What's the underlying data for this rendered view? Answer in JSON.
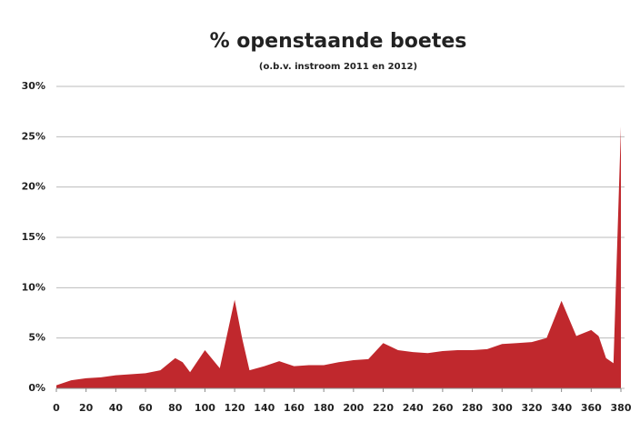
{
  "chart_data": {
    "type": "area",
    "title": "% openstaande boetes",
    "subtitle": "(o.b.v. instroom 2011 en 2012)",
    "x": [
      0,
      10,
      20,
      30,
      40,
      50,
      60,
      70,
      80,
      85,
      90,
      100,
      110,
      120,
      125,
      130,
      140,
      150,
      160,
      170,
      180,
      190,
      200,
      210,
      220,
      230,
      240,
      250,
      260,
      270,
      280,
      290,
      300,
      310,
      320,
      330,
      340,
      350,
      360,
      365,
      370,
      375,
      380
    ],
    "values": [
      0.3,
      0.8,
      1.0,
      1.1,
      1.3,
      1.4,
      1.5,
      1.8,
      3.0,
      2.6,
      1.6,
      3.8,
      2.0,
      8.8,
      5.0,
      1.8,
      2.2,
      2.7,
      2.2,
      2.3,
      2.3,
      2.6,
      2.8,
      2.9,
      4.5,
      3.8,
      3.6,
      3.5,
      3.7,
      3.8,
      3.8,
      3.9,
      4.4,
      4.5,
      4.6,
      5.0,
      8.7,
      5.2,
      5.8,
      5.2,
      3.0,
      2.5,
      26
    ],
    "color": "#c0282d",
    "xlim": [
      0,
      380
    ],
    "xticks": [
      0,
      20,
      40,
      60,
      80,
      100,
      120,
      140,
      160,
      180,
      200,
      220,
      240,
      260,
      280,
      300,
      320,
      340,
      360,
      380
    ],
    "ylim": [
      0,
      30
    ],
    "yticks": [
      {
        "value": 0,
        "label": "0%"
      },
      {
        "value": 5,
        "label": "5%"
      },
      {
        "value": 10,
        "label": "10%"
      },
      {
        "value": 15,
        "label": "15%"
      },
      {
        "value": 20,
        "label": "20%"
      },
      {
        "value": 25,
        "label": "25%"
      },
      {
        "value": 30,
        "label": "30%"
      }
    ],
    "grid": true
  }
}
